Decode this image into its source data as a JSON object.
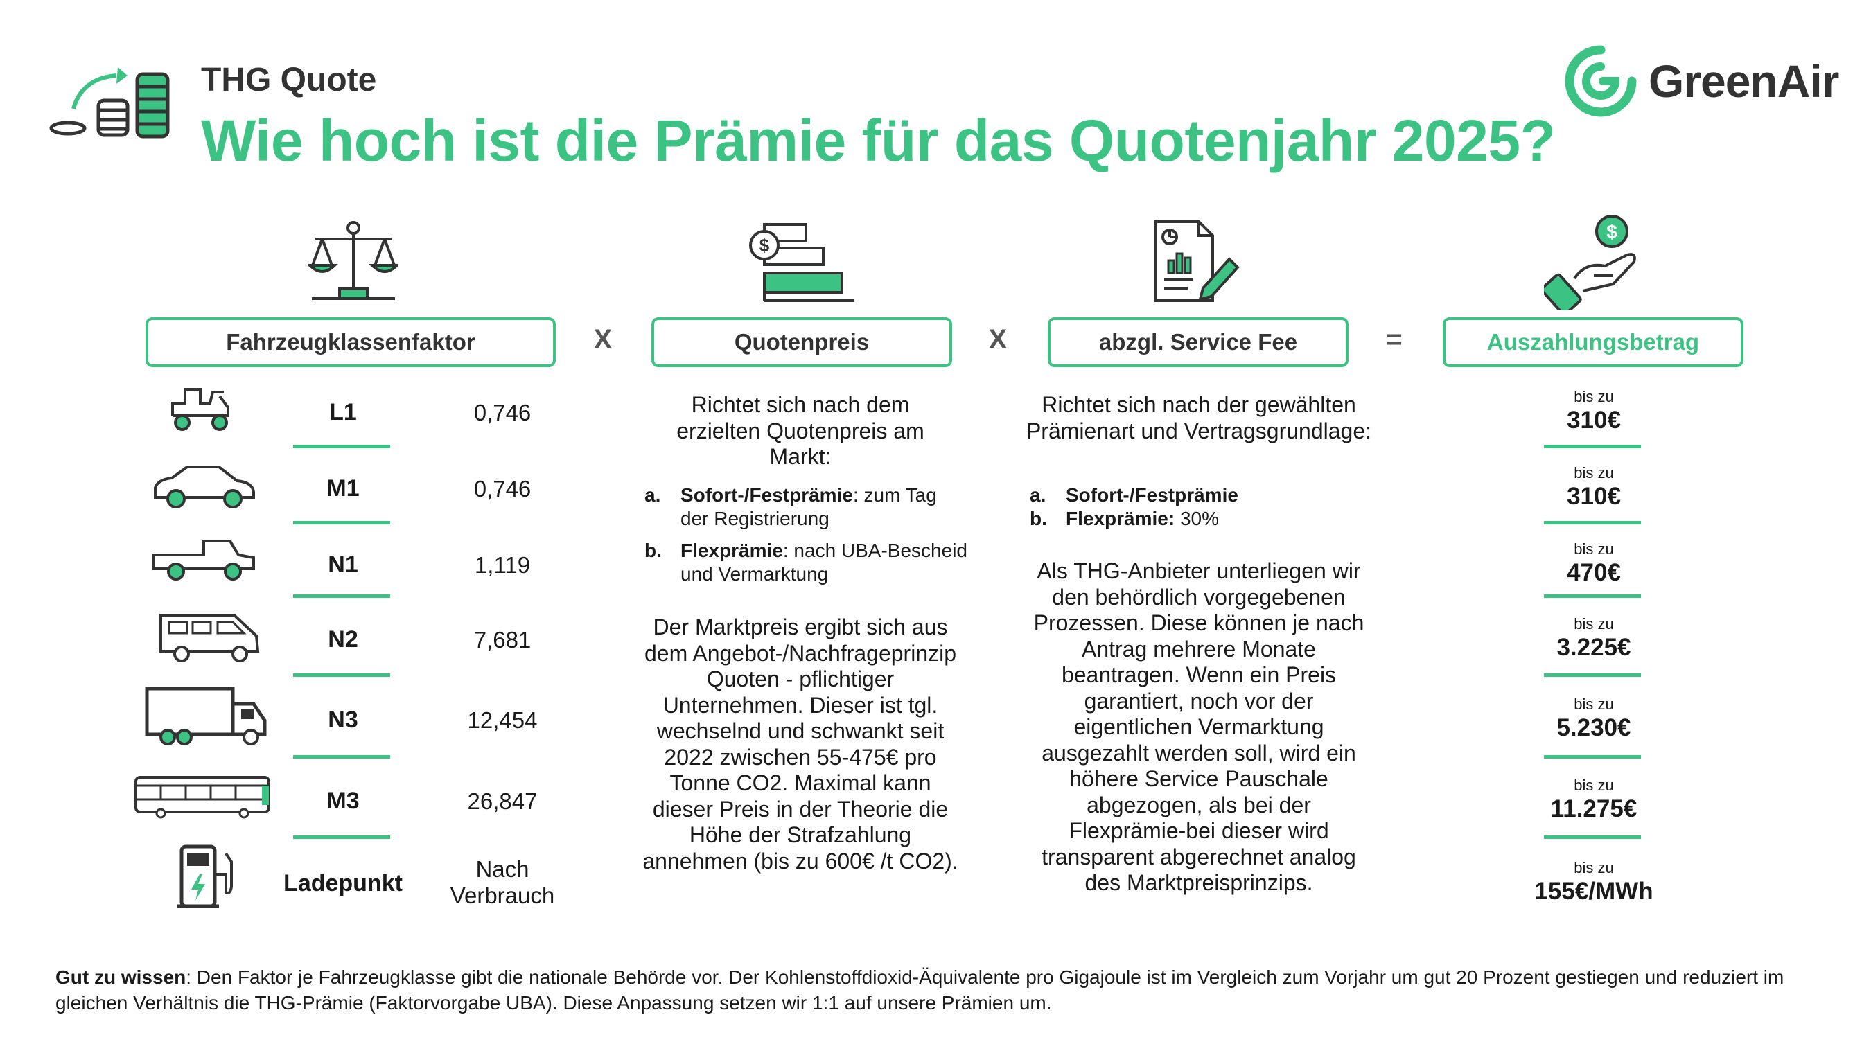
{
  "header": {
    "subtitle": "THG Quote",
    "title": "Wie hoch ist die Prämie für das Quotenjahr 2025?",
    "logo_text": "GreenAir"
  },
  "formula": {
    "box1": "Fahrzeugklassenfaktor",
    "op1": "X",
    "box2": "Quotenpreis",
    "op2": "X",
    "box3": "abzgl. Service Fee",
    "op3": "=",
    "box4": "Auszahlungsbetrag"
  },
  "vehicle_classes": [
    {
      "class": "L1",
      "factor": "0,746",
      "icon": "scooter-icon"
    },
    {
      "class": "M1",
      "factor": "0,746",
      "icon": "car-icon"
    },
    {
      "class": "N1",
      "factor": "1,119",
      "icon": "pickup-icon"
    },
    {
      "class": "N2",
      "factor": "7,681",
      "icon": "van-icon"
    },
    {
      "class": "N3",
      "factor": "12,454",
      "icon": "truck-icon"
    },
    {
      "class": "M3",
      "factor": "26,847",
      "icon": "bus-icon"
    },
    {
      "class": "Ladepunkt",
      "factor_line1": "Nach",
      "factor_line2": "Verbrauch",
      "icon": "charging-station-icon"
    }
  ],
  "quotenpreis": {
    "intro": "Richtet sich nach dem erzielten Quotenpreis am Markt:",
    "items": [
      {
        "marker": "a.",
        "bold": "Sofort-/Festprämie",
        "rest": ": zum Tag der Registrierung"
      },
      {
        "marker": "b.",
        "bold": "Flexprämie",
        "rest": ": nach UBA-Bescheid und Vermarktung"
      }
    ],
    "body": "Der Marktpreis ergibt sich aus dem Angebot-/Nachfrageprinzip Quoten - pflichtiger Unternehmen. Dieser ist tgl. wechselnd und schwankt seit 2022 zwischen 55-475€ pro Tonne CO2. Maximal kann dieser Preis in der Theorie die Höhe der Strafzahlung annehmen (bis zu 600€ /t CO2)."
  },
  "service_fee": {
    "intro": "Richtet sich nach der gewählten Prämienart und Vertragsgrundlage:",
    "items": [
      {
        "marker": "a.",
        "bold": "Sofort-/Festprämie",
        "rest": ""
      },
      {
        "marker": "b.",
        "bold": "Flexprämie:",
        "rest": " 30%"
      }
    ],
    "body": "Als THG-Anbieter unterliegen wir den behördlich vorgegebenen Prozessen. Diese können je nach Antrag mehrere Monate beantragen. Wenn ein Preis garantiert, noch vor der eigentlichen Vermarktung ausgezahlt werden soll, wird ein höhere Service Pauschale abgezogen, als bei der Flexprämie-bei dieser wird transparent abgerechnet analog des Marktpreisprinzips."
  },
  "payouts": [
    {
      "label": "bis zu",
      "amount": "310€"
    },
    {
      "label": "bis zu",
      "amount": "310€"
    },
    {
      "label": "bis zu",
      "amount": "470€"
    },
    {
      "label": "bis zu",
      "amount": "3.225€"
    },
    {
      "label": "bis zu",
      "amount": "5.230€"
    },
    {
      "label": "bis zu",
      "amount": "11.275€"
    },
    {
      "label": "bis zu",
      "amount": "155€/MWh"
    }
  ],
  "footnote": {
    "bold": "Gut zu wissen",
    "text": ": Den Faktor je Fahrzeugklasse gibt die nationale Behörde vor. Der Kohlenstoffdioxid-Äquivalente pro Gigajoule ist im Vergleich zum Vorjahr um gut 20 Prozent gestiegen und reduziert im gleichen Verhältnis die THG-Prämie (Faktorvorgabe UBA). Diese Anpassung setzen wir 1:1 auf unsere Prämien um."
  },
  "colors": {
    "accent": "#3cc383",
    "dark": "#333333"
  }
}
